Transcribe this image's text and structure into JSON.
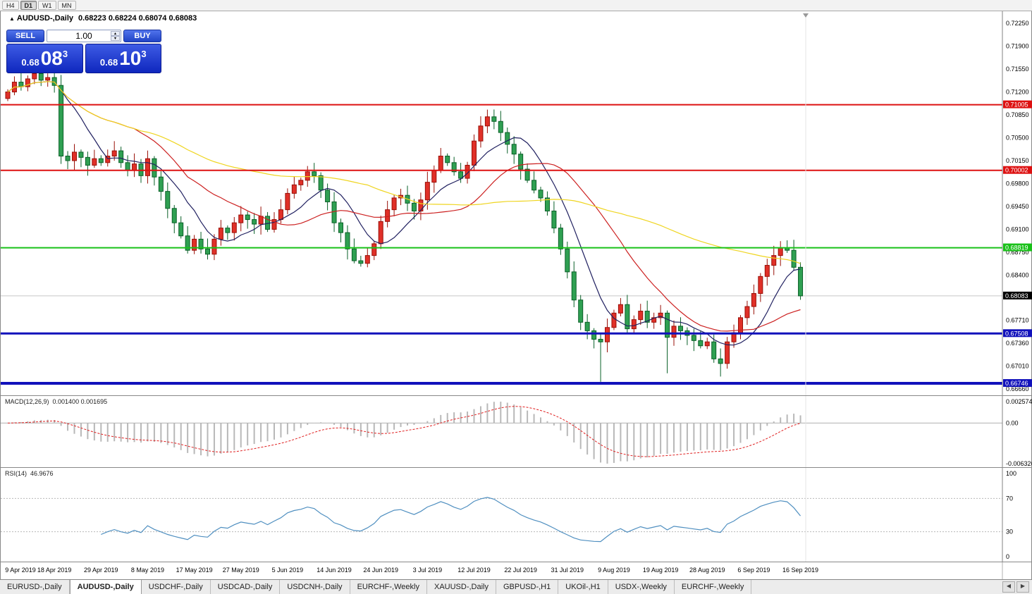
{
  "toolbar": {
    "timeframes": [
      {
        "label": "H4",
        "active": false
      },
      {
        "label": "D1",
        "active": true
      },
      {
        "label": "W1",
        "active": false
      },
      {
        "label": "MN",
        "active": false
      }
    ]
  },
  "icons": {
    "collapse": "▲",
    "spin_up": "▴",
    "spin_down": "▾",
    "tab_scroll_left": "◀",
    "tab_scroll_right": "▶"
  },
  "chart": {
    "title": "AUDUSD-,Daily",
    "ohlc_readout": "0.68223 0.68224 0.68074 0.68083"
  },
  "trade_panel": {
    "sell_label": "SELL",
    "buy_label": "BUY",
    "volume": "1.00",
    "sell_price": {
      "prefix": "0.68",
      "big": "08",
      "sup": "3"
    },
    "buy_price": {
      "prefix": "0.68",
      "big": "10",
      "sup": "3"
    }
  },
  "chart_data": {
    "type": "candlestick",
    "symbol": "AUDUSD",
    "timeframe": "Daily",
    "label_every": 7,
    "x_labels": [
      "9 Apr 2019",
      "18 Apr 2019",
      "29 Apr 2019",
      "8 May 2019",
      "17 May 2019",
      "27 May 2019",
      "5 Jun 2019",
      "14 Jun 2019",
      "24 Jun 2019",
      "3 Jul 2019",
      "12 Jul 2019",
      "22 Jul 2019",
      "31 Jul 2019",
      "9 Aug 2019",
      "19 Aug 2019",
      "28 Aug 2019",
      "6 Sep 2019",
      "16 Sep 2019"
    ],
    "first_open": 0.711,
    "closes": [
      0.712,
      0.7135,
      0.7128,
      0.714,
      0.7148,
      0.7138,
      0.7142,
      0.713,
      0.7022,
      0.7015,
      0.7028,
      0.702,
      0.7008,
      0.7018,
      0.7012,
      0.7022,
      0.703,
      0.7012,
      0.7,
      0.701,
      0.6992,
      0.7018,
      0.699,
      0.6968,
      0.6942,
      0.692,
      0.69,
      0.6878,
      0.6895,
      0.688,
      0.6872,
      0.6895,
      0.6912,
      0.6905,
      0.692,
      0.6932,
      0.6925,
      0.6918,
      0.693,
      0.691,
      0.6925,
      0.694,
      0.6965,
      0.6978,
      0.6985,
      0.6998,
      0.6992,
      0.697,
      0.6952,
      0.692,
      0.6905,
      0.688,
      0.6862,
      0.6858,
      0.687,
      0.6888,
      0.6922,
      0.694,
      0.6958,
      0.6962,
      0.695,
      0.6938,
      0.6955,
      0.6982,
      0.7,
      0.7022,
      0.7012,
      0.6998,
      0.6988,
      0.7008,
      0.7045,
      0.7068,
      0.7082,
      0.7075,
      0.7058,
      0.704,
      0.7025,
      0.7002,
      0.6985,
      0.697,
      0.6958,
      0.6938,
      0.6912,
      0.688,
      0.6845,
      0.6802,
      0.6768,
      0.6755,
      0.6742,
      0.6738,
      0.676,
      0.6782,
      0.6795,
      0.6758,
      0.6772,
      0.6785,
      0.6768,
      0.6775,
      0.6782,
      0.6745,
      0.6762,
      0.6755,
      0.6748,
      0.674,
      0.6732,
      0.6738,
      0.6712,
      0.6705,
      0.6738,
      0.6752,
      0.6775,
      0.6792,
      0.6812,
      0.6838,
      0.6855,
      0.687,
      0.6882,
      0.6878,
      0.6852,
      0.68083
    ],
    "spike_lows": {
      "89": 0.6677,
      "99": 0.669,
      "107": 0.6685
    },
    "spike_highs": {
      "4": 0.7153,
      "72": 0.7093,
      "116": 0.6892
    },
    "y_axis": {
      "labels": [
        "0.72250",
        "0.71900",
        "0.71550",
        "0.71200",
        "0.70850",
        "0.70500",
        "0.70150",
        "0.69800",
        "0.69450",
        "0.69100",
        "0.68750",
        "0.68400",
        "0.67710",
        "0.67360",
        "0.67010",
        "0.66660"
      ]
    },
    "h_lines": [
      {
        "value": 0.71005,
        "label": "0.71005",
        "color": "#dd1111",
        "width": 2
      },
      {
        "value": 0.70002,
        "label": "0.70002",
        "color": "#dd1111",
        "width": 2
      },
      {
        "value": 0.68819,
        "label": "0.68819",
        "color": "#19c119",
        "width": 2
      },
      {
        "value": 0.67508,
        "label": "0.67508",
        "color": "#1111bb",
        "width": 3
      },
      {
        "value": 0.66746,
        "label": "0.66746",
        "color": "#1111bb",
        "width": 4
      }
    ],
    "current_price": {
      "value": 0.68083,
      "label": "0.68083"
    },
    "ma_lines": [
      {
        "period": 8,
        "color": "#202060"
      },
      {
        "period": 20,
        "color": "#cc2020"
      },
      {
        "period": 55,
        "color": "#efd520"
      }
    ],
    "colors": {
      "up": "#e03028",
      "up_border": "#991008",
      "down": "#2fa052",
      "down_border": "#0a6028",
      "macd_hist": "#b8b8b8",
      "macd_signal": "#e02020",
      "rsi_line": "#4f8fc0"
    },
    "indicators": {
      "macd": {
        "label": "MACD(12,26,9)",
        "values": "0.001400 0.001695",
        "fast": 12,
        "slow": 26,
        "signal": 9,
        "axis_labels": {
          "max": "0.002574",
          "zero": "0.00",
          "min": "-0.006326"
        }
      },
      "rsi": {
        "label": "RSI(14)",
        "value": "46.9676",
        "period": 14,
        "levels": [
          100,
          70,
          30,
          0
        ],
        "axis_labels": [
          "100",
          "70",
          "30",
          "0"
        ]
      }
    }
  },
  "tabs": {
    "items": [
      {
        "label": "EURUSD-,Daily",
        "active": false
      },
      {
        "label": "AUDUSD-,Daily",
        "active": true
      },
      {
        "label": "USDCHF-,Daily",
        "active": false
      },
      {
        "label": "USDCAD-,Daily",
        "active": false
      },
      {
        "label": "USDCNH-,Daily",
        "active": false
      },
      {
        "label": "EURCHF-,Weekly",
        "active": false
      },
      {
        "label": "XAUUSD-,Daily",
        "active": false
      },
      {
        "label": "GBPUSD-,H1",
        "active": false
      },
      {
        "label": "UKOil-,H1",
        "active": false
      },
      {
        "label": "USDX-,Weekly",
        "active": false
      },
      {
        "label": "EURCHF-,Weekly",
        "active": false
      }
    ]
  }
}
